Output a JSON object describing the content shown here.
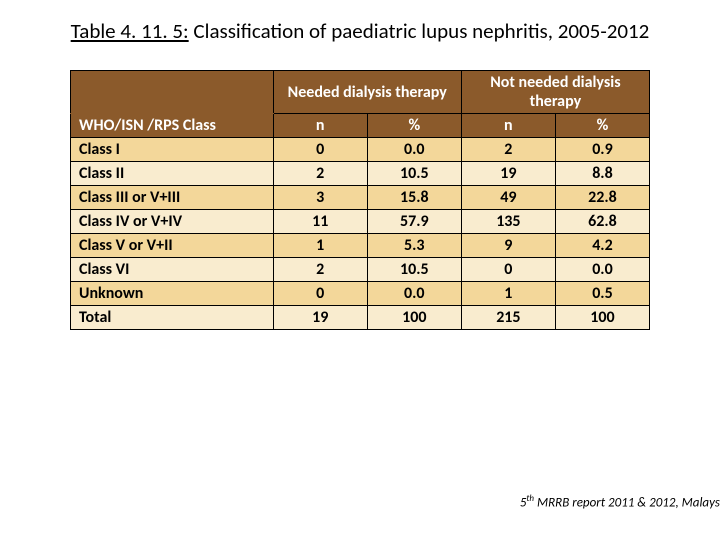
{
  "title": {
    "label": "Table 4. 11. 5:",
    "text": "Classification of paediatric lupus nephritis, 2005-2012"
  },
  "table": {
    "header": {
      "rowhead": "WHO/ISN /RPS Class",
      "group1": "Needed dialysis therapy",
      "group2": "Not needed dialysis therapy",
      "sub_n": "n",
      "sub_pct": "%"
    },
    "rows": [
      {
        "label": "Class I",
        "n1": "0",
        "p1": "0.0",
        "n2": "2",
        "p2": "0.9"
      },
      {
        "label": "Class II",
        "n1": "2",
        "p1": "10.5",
        "n2": "19",
        "p2": "8.8"
      },
      {
        "label": "Class III or V+III",
        "n1": "3",
        "p1": "15.8",
        "n2": "49",
        "p2": "22.8"
      },
      {
        "label": "Class IV or  V+IV",
        "n1": "11",
        "p1": "57.9",
        "n2": "135",
        "p2": "62.8"
      },
      {
        "label": "Class V or V+II",
        "n1": "1",
        "p1": "5.3",
        "n2": "9",
        "p2": "4.2"
      },
      {
        "label": "Class VI",
        "n1": "2",
        "p1": "10.5",
        "n2": "0",
        "p2": "0.0"
      },
      {
        "label": "Unknown",
        "n1": "0",
        "p1": "0.0",
        "n2": "1",
        "p2": "0.5"
      },
      {
        "label": "Total",
        "n1": "19",
        "p1": "100",
        "n2": "215",
        "p2": "100"
      }
    ]
  },
  "footer": {
    "sup": "th",
    "prefix": "5",
    "text": " MRRB report 2011 & 2012, Malays"
  },
  "colors": {
    "header_bg": "#8b5a2b",
    "header_fg": "#ffffff",
    "row_odd_bg": "#f3d79a",
    "row_even_bg": "#f9eccf",
    "border": "#000000",
    "page_bg": "#ffffff"
  }
}
